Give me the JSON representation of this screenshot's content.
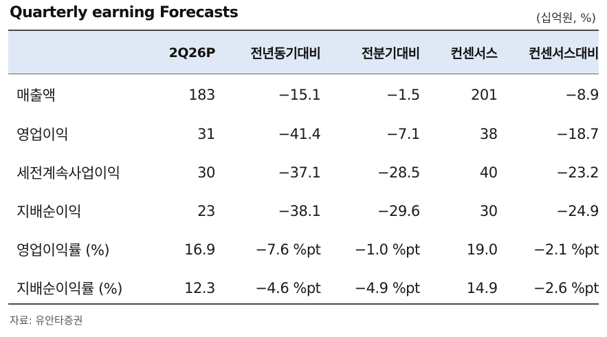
{
  "title": "Quarterly earning Forecasts",
  "unit": "(십억원, %)",
  "table": {
    "headers": [
      "",
      "2Q26P",
      "전년동기대비",
      "전분기대비",
      "컨센서스",
      "컨센서스대비"
    ],
    "rows": [
      [
        "매출액",
        "183",
        "−15.1",
        "−1.5",
        "201",
        "−8.9"
      ],
      [
        "영업이익",
        "31",
        "−41.4",
        "−7.1",
        "38",
        "−18.7"
      ],
      [
        "세전계속사업이익",
        "30",
        "−37.1",
        "−28.5",
        "40",
        "−23.2"
      ],
      [
        "지배순이익",
        "23",
        "−38.1",
        "−29.6",
        "30",
        "−24.9"
      ],
      [
        "영업이익률 (%)",
        "16.9",
        "−7.6 %pt",
        "−1.0 %pt",
        "19.0",
        "−2.1 %pt"
      ],
      [
        "지배순이익률 (%)",
        "12.3",
        "−4.6 %pt",
        "−4.9 %pt",
        "14.9",
        "−2.6 %pt"
      ]
    ]
  },
  "source": "자료: 유안타증권"
}
